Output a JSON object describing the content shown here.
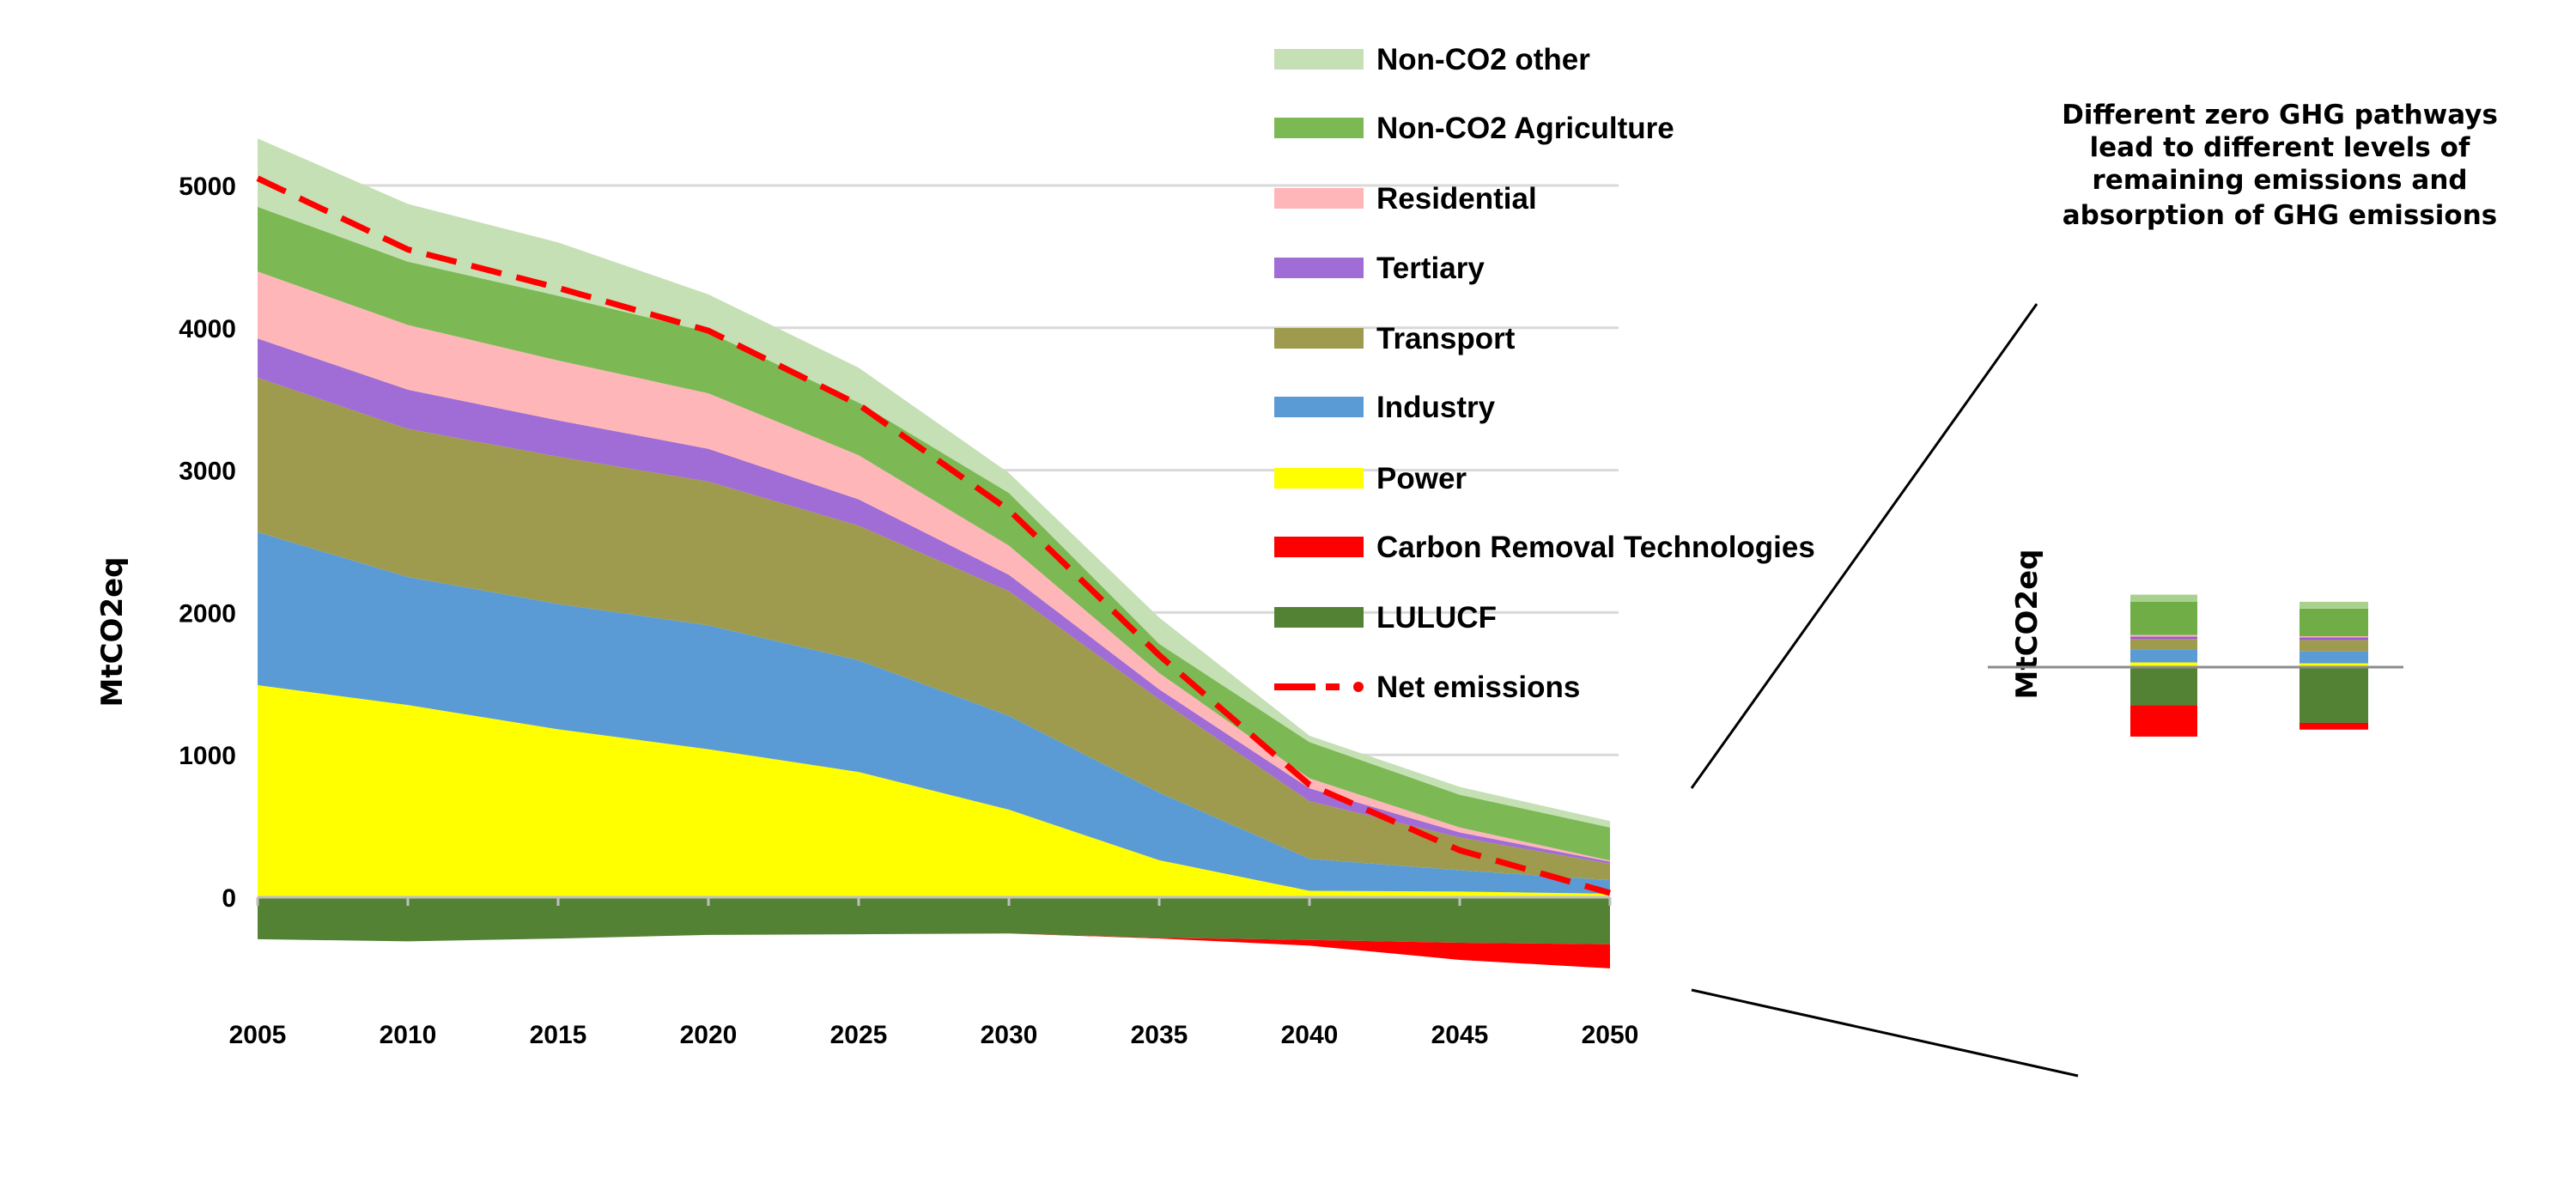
{
  "chart_data": [
    {
      "type": "area",
      "stacked": true,
      "ylabel": "MtCO2eq",
      "xlabel": "",
      "x": [
        2005,
        2010,
        2015,
        2020,
        2025,
        2030,
        2035,
        2040,
        2045,
        2050
      ],
      "x_tick_labels": [
        "2005",
        "2010",
        "2015",
        "2020",
        "2025",
        "2030",
        "2035",
        "2040",
        "2045",
        "2050"
      ],
      "y_ticks": [
        0,
        1000,
        2000,
        3000,
        4000,
        5000
      ],
      "y_tick_labels": [
        "0",
        "1000",
        "2000",
        "3000",
        "4000",
        "5000"
      ],
      "ylim": [
        -600,
        5400
      ],
      "grid": true,
      "legend_position": "right",
      "series": [
        {
          "name": "Power",
          "color": "#ffff00",
          "values": [
            1490,
            1350,
            1180,
            1040,
            880,
            615,
            260,
            45,
            40,
            25
          ]
        },
        {
          "name": "Industry",
          "color": "#5b9bd5",
          "values": [
            1075,
            900,
            880,
            870,
            785,
            660,
            475,
            225,
            150,
            95
          ]
        },
        {
          "name": "Transport",
          "color": "#9e9b4e",
          "values": [
            1085,
            1040,
            1035,
            1010,
            945,
            875,
            655,
            405,
            230,
            115
          ]
        },
        {
          "name": "Tertiary",
          "color": "#a06cd5",
          "values": [
            275,
            275,
            255,
            230,
            185,
            115,
            70,
            90,
            35,
            15
          ]
        },
        {
          "name": "Residential",
          "color": "#ffb6b9",
          "values": [
            470,
            455,
            420,
            390,
            310,
            205,
            115,
            70,
            35,
            8
          ]
        },
        {
          "name": "Non-CO2 Agriculture",
          "color": "#7cb955",
          "values": [
            455,
            445,
            455,
            430,
            370,
            370,
            205,
            255,
            230,
            232
          ]
        },
        {
          "name": "Non-CO2 other",
          "color": "#c5e0b4",
          "values": [
            480,
            405,
            375,
            265,
            245,
            140,
            185,
            45,
            55,
            45
          ]
        },
        {
          "name": "LULUCF",
          "color": "#548235",
          "values": [
            -295,
            -310,
            -290,
            -265,
            -260,
            -255,
            -285,
            -300,
            -320,
            -330
          ]
        },
        {
          "name": "Carbon Removal Technologies",
          "color": "#ff0000",
          "values": [
            0,
            0,
            0,
            0,
            0,
            0,
            -5,
            -40,
            -120,
            -170
          ]
        }
      ],
      "net_line": {
        "name": "Net emissions",
        "color": "#ff0000",
        "style": "dashed",
        "values": [
          5050,
          4550,
          4280,
          3980,
          3460,
          2720,
          1700,
          790,
          330,
          30
        ]
      }
    },
    {
      "type": "bar",
      "stacked": true,
      "title": "Different zero GHG pathways lead to different levels of remaining emissions and absorption of GHG emissions",
      "title_lines": [
        "Different zero GHG pathways",
        "lead to different levels of",
        "remaining emissions and",
        "absorption of GHG emissions"
      ],
      "ylabel": "MtCO2eq",
      "categories": [
        "",
        ""
      ],
      "series": [
        {
          "name": "Power",
          "color": "#ffff00",
          "values": [
            33,
            27
          ]
        },
        {
          "name": "Industry",
          "color": "#5b9bd5",
          "values": [
            93,
            86
          ]
        },
        {
          "name": "Transport",
          "color": "#9e9b4e",
          "values": [
            72,
            78
          ]
        },
        {
          "name": "Tertiary",
          "color": "#9b59d0",
          "values": [
            17,
            18
          ]
        },
        {
          "name": "Residential",
          "color": "#ffb6b9",
          "values": [
            11,
            8
          ]
        },
        {
          "name": "Non-CO2 Agriculture",
          "color": "#70ad47",
          "values": [
            234,
            194
          ]
        },
        {
          "name": "Non-CO2 other",
          "color": "#a9d18e",
          "values": [
            49,
            48
          ]
        },
        {
          "name": "LULUCF",
          "color": "#548235",
          "values": [
            -268,
            -392
          ]
        },
        {
          "name": "Carbon Removal Technologies",
          "color": "#ff0000",
          "values": [
            -220,
            -47
          ]
        }
      ]
    }
  ],
  "legend": [
    {
      "label": "Non-CO2 other",
      "color": "#c5e0b4",
      "kind": "swatch"
    },
    {
      "label": "Non-CO2 Agriculture",
      "color": "#7cb955",
      "kind": "swatch"
    },
    {
      "label": "Residential",
      "color": "#ffb6b9",
      "kind": "swatch"
    },
    {
      "label": "Tertiary",
      "color": "#a06cd5",
      "kind": "swatch"
    },
    {
      "label": "Transport",
      "color": "#9e9b4e",
      "kind": "swatch"
    },
    {
      "label": "Industry",
      "color": "#5b9bd5",
      "kind": "swatch"
    },
    {
      "label": "Power",
      "color": "#ffff00",
      "kind": "swatch"
    },
    {
      "label": "Carbon Removal Technologies",
      "color": "#ff0000",
      "kind": "swatch"
    },
    {
      "label": "LULUCF",
      "color": "#548235",
      "kind": "swatch"
    },
    {
      "label": "Net emissions",
      "color": "#ff0000",
      "kind": "dashed-line"
    }
  ]
}
